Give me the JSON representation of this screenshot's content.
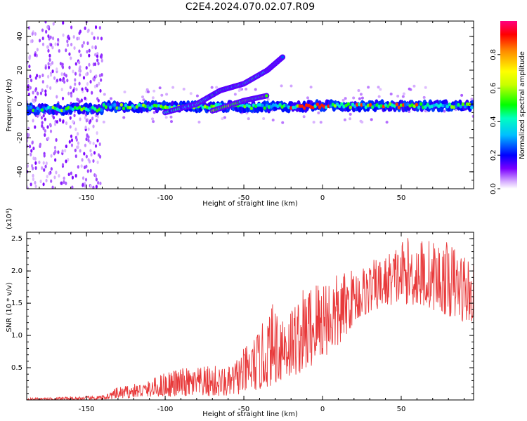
{
  "figure_title": "C2E4.2024.070.02.07.R09",
  "colorbar": {
    "label": "Normalized spectral amplitude",
    "ticks": [
      "0.0",
      "0.2",
      "0.4",
      "0.6",
      "0.8"
    ],
    "tick_values": [
      0.0,
      0.2,
      0.4,
      0.6,
      0.8
    ],
    "range": [
      0,
      1
    ]
  },
  "chart_data": [
    {
      "type": "heatmap",
      "title": "",
      "xlabel": "Height of straight line (km)",
      "ylabel": "Frequency (Hz)",
      "xlim": [
        -188,
        96
      ],
      "ylim": [
        -50,
        49
      ],
      "x_ticks": [
        -150,
        -100,
        -50,
        0,
        50
      ],
      "x_tick_labels": [
        "-150",
        "-100",
        "-50",
        "0",
        "50"
      ],
      "y_ticks": [
        -40,
        -20,
        0,
        20,
        40
      ],
      "y_tick_labels": [
        "-40",
        "-20",
        "0",
        "20",
        "40"
      ],
      "grid": false,
      "features": [
        {
          "name": "horizontal band",
          "x": [
            -188,
            96
          ],
          "frequency_hz": 0,
          "amplitude": [
            0.2,
            0.95
          ]
        },
        {
          "name": "rising streak",
          "points": [
            [
              -100,
              -5
            ],
            [
              -80,
              0
            ],
            [
              -65,
              8
            ],
            [
              -50,
              12
            ],
            [
              -35,
              20
            ],
            [
              -25,
              28
            ]
          ]
        },
        {
          "name": "diagonal branch",
          "points": [
            [
              -70,
              -4
            ],
            [
              -50,
              2
            ],
            [
              -35,
              5
            ]
          ]
        }
      ]
    },
    {
      "type": "line",
      "title": "",
      "xlabel": "Height of straight line (km)",
      "ylabel": "SNR (10 * v/v)",
      "y_multiplier_label": "(x10⁴)",
      "xlim": [
        -188,
        96
      ],
      "ylim": [
        0,
        2.6
      ],
      "x_ticks": [
        -150,
        -100,
        -50,
        0,
        50
      ],
      "x_tick_labels": [
        "-150",
        "-100",
        "-50",
        "0",
        "50"
      ],
      "y_ticks": [
        0.5,
        1.0,
        1.5,
        2.0,
        2.5
      ],
      "y_tick_labels": [
        "0.5",
        "1.0",
        "1.5",
        "2.0",
        "2.5"
      ],
      "grid": false,
      "series_color": "#e8393a",
      "envelope": {
        "x": [
          -188,
          -160,
          -140,
          -130,
          -110,
          -100,
          -90,
          -80,
          -70,
          -60,
          -50,
          -40,
          -30,
          -20,
          -10,
          0,
          10,
          20,
          30,
          40,
          50,
          60,
          70,
          80,
          90,
          96
        ],
        "low": [
          0.0,
          0.0,
          0.0,
          0.02,
          0.05,
          0.05,
          0.05,
          0.05,
          0.05,
          0.05,
          0.1,
          0.15,
          0.25,
          0.35,
          0.45,
          0.65,
          0.8,
          1.2,
          1.35,
          1.45,
          1.5,
          1.45,
          1.4,
          1.3,
          1.2,
          1.2
        ],
        "high": [
          0.03,
          0.05,
          0.07,
          0.2,
          0.3,
          0.45,
          0.5,
          0.5,
          0.55,
          0.5,
          0.8,
          1.1,
          1.6,
          1.5,
          1.8,
          2.0,
          1.95,
          2.05,
          2.15,
          2.25,
          2.5,
          2.55,
          2.5,
          2.45,
          2.35,
          2.1
        ]
      }
    }
  ]
}
